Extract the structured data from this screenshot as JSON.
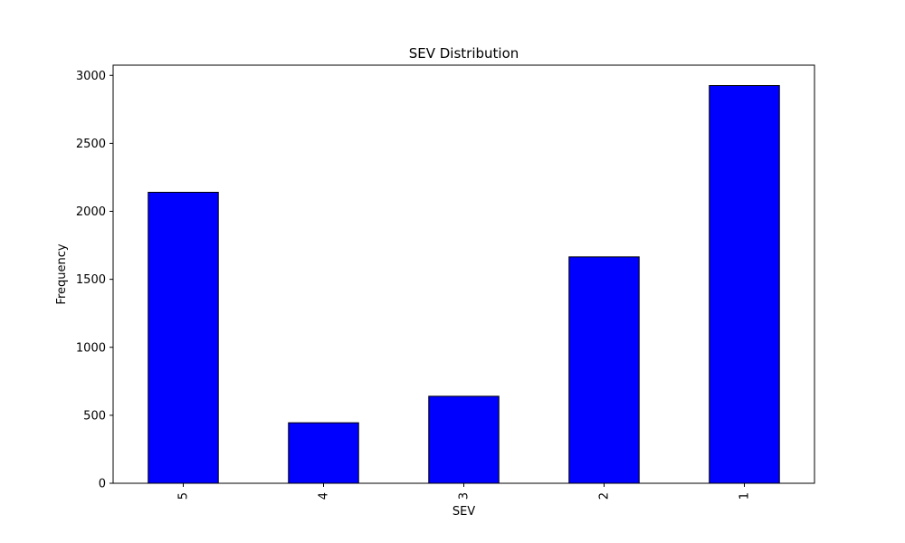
{
  "chart_data": {
    "type": "bar",
    "title": "SEV Distribution",
    "xlabel": "SEV",
    "ylabel": "Frequency",
    "categories": [
      "5",
      "4",
      "3",
      "2",
      "1"
    ],
    "values": [
      2140,
      445,
      640,
      1665,
      2925
    ],
    "ylim": [
      0,
      3075
    ],
    "yticks": [
      0,
      500,
      1000,
      1500,
      2000,
      2500,
      3000
    ],
    "bar_color": "#0000ff",
    "edge_color": "#000000",
    "grid": false,
    "legend": "none"
  }
}
